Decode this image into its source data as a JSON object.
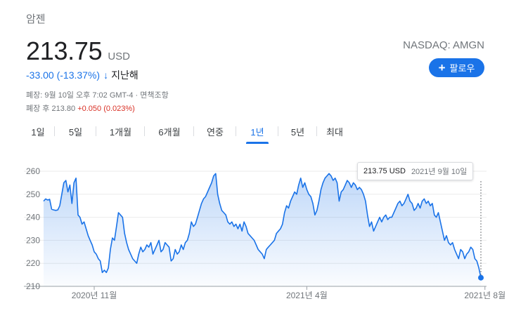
{
  "stock": {
    "name": "암젠",
    "price": "213.75",
    "currency": "USD",
    "exchange": "NASDAQ: AMGN",
    "change": "-33.00 (-13.37%)",
    "change_arrow": "↓",
    "change_period": "지난해",
    "follow_label": "팔로우",
    "follow_icon": "plus-icon"
  },
  "meta": {
    "close_text": "폐장: 9월 10일 오후 7:02 GMT-4 · ",
    "disclaimer": "면책조항",
    "after_hours_label": "폐장 후 213.80 ",
    "after_hours_change": "+0.050 (0.023%)"
  },
  "tabs": [
    {
      "label": "1일"
    },
    {
      "label": "5일"
    },
    {
      "label": "1개월"
    },
    {
      "label": "6개월"
    },
    {
      "label": "연중"
    },
    {
      "label": "1년",
      "active": true
    },
    {
      "label": "5년"
    },
    {
      "label": "최대"
    }
  ],
  "tooltip": {
    "value": "213.75 USD",
    "date": "2021년 9월 10일"
  },
  "colors": {
    "line": "#1a73e8",
    "accent": "#1a73e8",
    "negative": "#d93025"
  },
  "chart_data": {
    "type": "area",
    "yticks": [
      210,
      220,
      230,
      240,
      250,
      260
    ],
    "ylim": [
      210,
      261
    ],
    "xticks": [
      {
        "label": "2020년 11월",
        "index": 25
      },
      {
        "label": "2021년 4월",
        "index": 130
      },
      {
        "label": "2021년 8월",
        "index": 218
      }
    ],
    "grid": true,
    "values": [
      247,
      248,
      247.5,
      247.8,
      243.5,
      243.2,
      243,
      243.2,
      245,
      250,
      255,
      256,
      251,
      254,
      246,
      255,
      257,
      241,
      240,
      237,
      238,
      235,
      232,
      230,
      228,
      225,
      224,
      222,
      221,
      216,
      217,
      216,
      218,
      226,
      231,
      230,
      236,
      242,
      241,
      240,
      233,
      229,
      226,
      224,
      222,
      221,
      220,
      224,
      227,
      225,
      226,
      228,
      227,
      229,
      224,
      226,
      228,
      230,
      225,
      226,
      229,
      228,
      227,
      221,
      222,
      226,
      224,
      225,
      228,
      226,
      229,
      230,
      233,
      238,
      236,
      237,
      240,
      243,
      246,
      248,
      249,
      251,
      253,
      255,
      258,
      259,
      250,
      246,
      243,
      242,
      241,
      238,
      237,
      238,
      236,
      237,
      235,
      237,
      234,
      238,
      236,
      233,
      232,
      231,
      230,
      228,
      226,
      225,
      224,
      222,
      226,
      227,
      228,
      229,
      230,
      233,
      234,
      235,
      237,
      242,
      245,
      244,
      247,
      249,
      251,
      250,
      254,
      257,
      253,
      255,
      252,
      250,
      249,
      246,
      241,
      243,
      247,
      252,
      255,
      257,
      258,
      259,
      258,
      256,
      257,
      255,
      247,
      251,
      252,
      254,
      256,
      255,
      253,
      255,
      254,
      252,
      253,
      252,
      250,
      247,
      241,
      236,
      238,
      234,
      236,
      238,
      240,
      238,
      240,
      241,
      239,
      240,
      240,
      242,
      244,
      246,
      247,
      245,
      246,
      248,
      250,
      247,
      246,
      243,
      244,
      246,
      244,
      247,
      248,
      246,
      247,
      245,
      246,
      241,
      240,
      242,
      238,
      234,
      230,
      232,
      229,
      228,
      229,
      226,
      224,
      222,
      226,
      225,
      222,
      224,
      225,
      227,
      226,
      222,
      221,
      218,
      213.75
    ]
  }
}
